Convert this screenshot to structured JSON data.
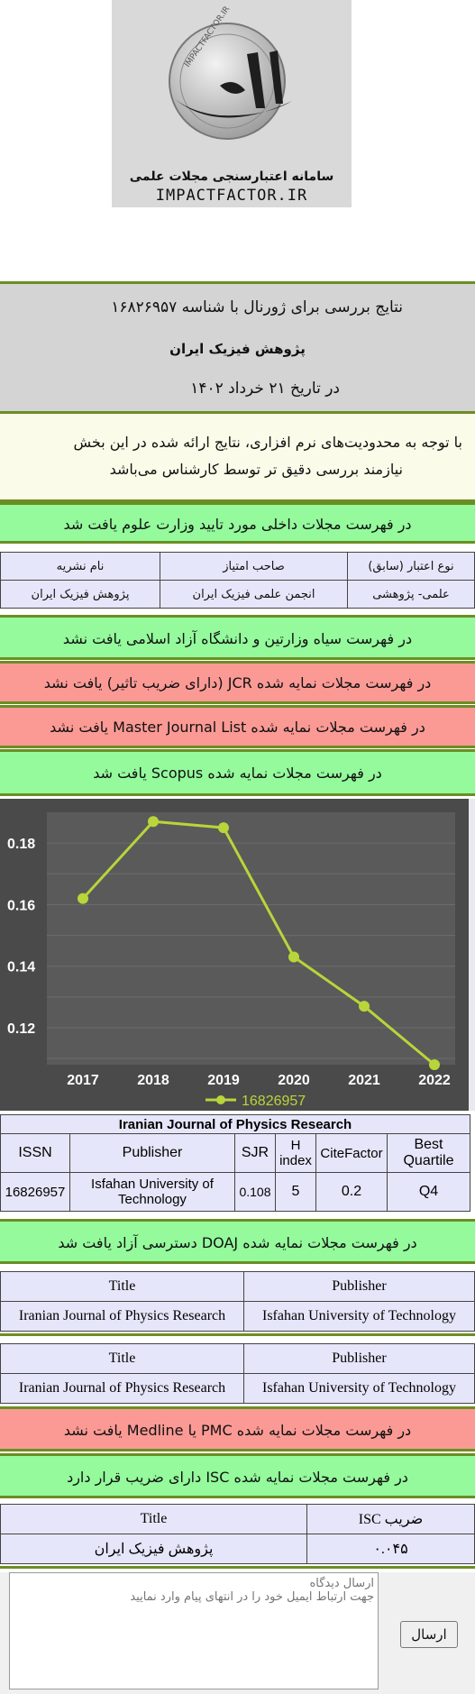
{
  "logo": {
    "ring_text": "IMPACTFACTOR.IR",
    "caption_fa": "سامانه اعتبارسنجی مجلات علمی",
    "caption_en": "IMPACTFACTOR.IR"
  },
  "header": {
    "title_line": "نتایج بررسی برای ژورنال با شناسه ۱۶۸۲۶۹۵۷",
    "journal_name": "پژوهش فیزیک ایران",
    "date_line": "در تاریخ ۲۱ خرداد ۱۴۰۲"
  },
  "notice": {
    "line1": "با توجه به محدودیت‌های نرم افزاری، نتایج ارائه شده در این بخش",
    "line2": "نیازمند بررسی دقیق تر توسط کارشناس می‌باشد"
  },
  "ministry": {
    "status": "در فهرست مجلات داخلی مورد تایید وزارت علوم یافت شد",
    "headers": [
      "نوع اعتبار (سابق)",
      "صاحب امتیاز",
      "نام نشریه"
    ],
    "row": [
      "علمی- پژوهشی",
      "انجمن علمی فیزیک ایران",
      "پژوهش فیزیک ایران"
    ]
  },
  "blacklist": {
    "status": "در فهرست سیاه وزارتین و دانشگاه آزاد اسلامی یافت نشد"
  },
  "jcr": {
    "status": "در فهرست مجلات نمایه شده JCR (دارای ضریب تاثیر) یافت نشد"
  },
  "mjl": {
    "status": "در فهرست مجلات نمایه شده Master Journal List یافت نشد"
  },
  "scopus": {
    "status": "در فهرست مجلات نمایه شده Scopus یافت شد"
  },
  "chart_data": {
    "type": "line",
    "x": [
      "2017",
      "2018",
      "2019",
      "2020",
      "2021",
      "2022"
    ],
    "series": [
      {
        "name": "16826957",
        "values": [
          0.162,
          0.187,
          0.185,
          0.143,
          0.127,
          0.108
        ]
      }
    ],
    "yticks": [
      "0.12",
      "0.14",
      "0.16",
      "0.18"
    ],
    "ylim": [
      0.108,
      0.19
    ],
    "legend_position": "bottom",
    "line_color": "#b8d53a",
    "background": "#505050",
    "grid": true
  },
  "scopus_table": {
    "title": "Iranian Journal of Physics Research",
    "headers": [
      "ISSN",
      "Publisher",
      "SJR",
      "H index",
      "CiteFactor",
      "Best Quartile"
    ],
    "row": [
      "16826957",
      "Isfahan University of Technology",
      "0.108",
      "5",
      "0.2",
      "Q4"
    ]
  },
  "doaj": {
    "status": "در فهرست مجلات نمایه شده DOAJ دسترسی آزاد یافت شد",
    "headers": [
      "Title",
      "Publisher"
    ],
    "row": [
      "Iranian Journal of Physics Research",
      "Isfahan University of Technology"
    ],
    "headers2": [
      "Title",
      "Publisher"
    ],
    "row2": [
      "Iranian Journal of Physics Research",
      "Isfahan University of Technology"
    ]
  },
  "pmc": {
    "status": "در فهرست مجلات نمایه شده PMC یا Medline یافت نشد"
  },
  "isc": {
    "status": "در فهرست مجلات نمایه شده ISC دارای ضریب قرار دارد",
    "headers": [
      "ضریب ISC",
      "Title"
    ],
    "row": [
      "۰.۰۴۵",
      "پژوهش فیزیک ایران"
    ]
  },
  "comment": {
    "placeholder": "ارسال دیدگاه\nجهت ارتباط ایمیل خود را در انتهای پیام وارد نمایید",
    "send_label": "ارسال"
  }
}
